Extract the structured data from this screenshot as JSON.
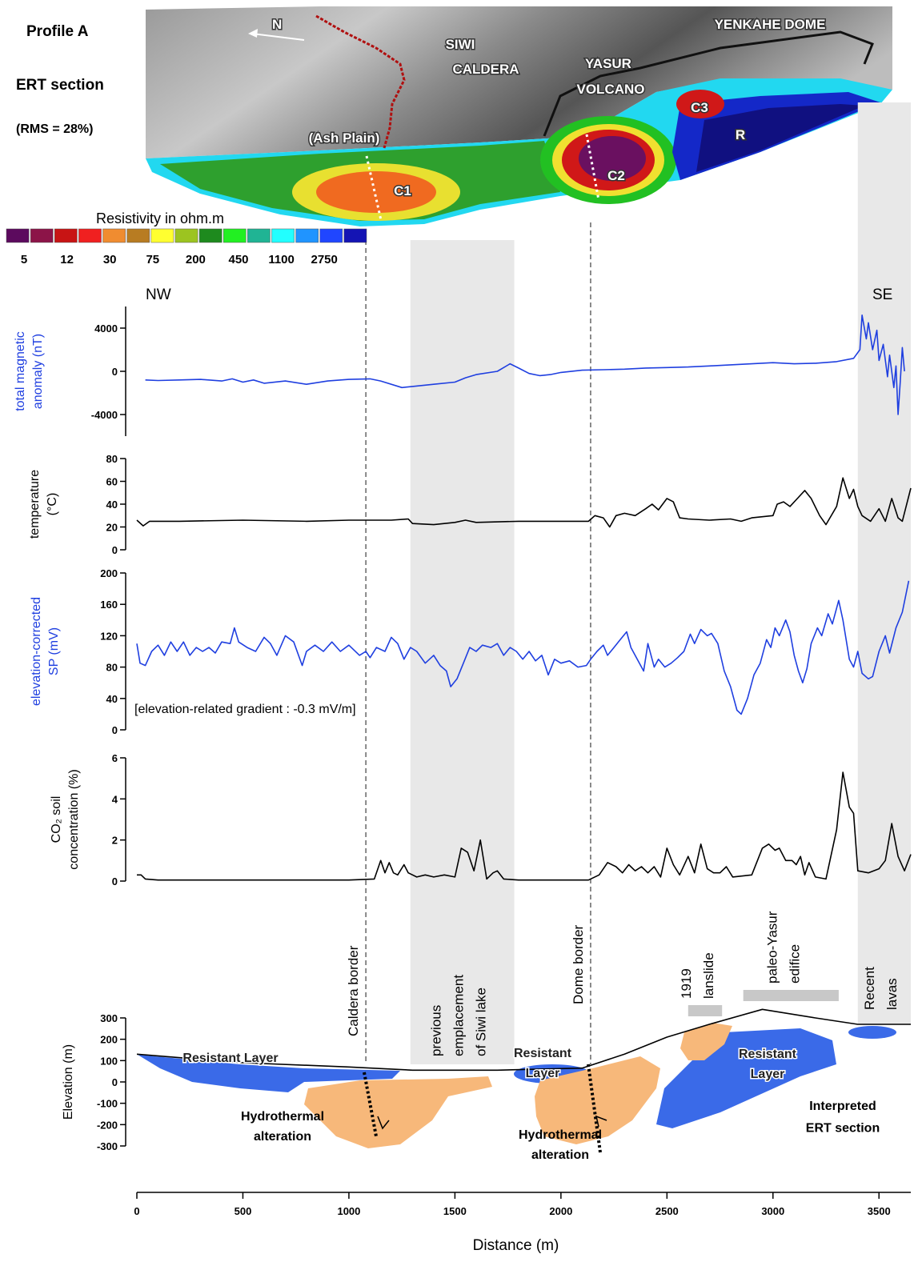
{
  "ert_image": {
    "profile": "Profile A",
    "section": "ERT section",
    "rms": "(RMS = 28%)",
    "north": "N",
    "siwi_caldera": [
      "SIWI",
      "CALDERA"
    ],
    "yasur_volcano": [
      "YASUR",
      "VOLCANO"
    ],
    "yenkahe_dome": "YENKAHE DOME",
    "ash_plain": "(Ash Plain)",
    "anomalies": [
      "C1",
      "C2",
      "C3",
      "R"
    ],
    "colorbar": {
      "title": "Resistivity in ohm.m",
      "colors": [
        "#5c0a5e",
        "#8c1448",
        "#c81414",
        "#f02020",
        "#f08c30",
        "#b87c22",
        "#ffff30",
        "#9cc420",
        "#1e8a1e",
        "#22f022",
        "#20b494",
        "#22ffff",
        "#2094ff",
        "#2046ff",
        "#1414b4"
      ],
      "labels": [
        "5",
        "12",
        "30",
        "75",
        "200",
        "450",
        "1100",
        "2750"
      ]
    }
  },
  "direction_labels": [
    "NW",
    "SE"
  ],
  "x_axis": {
    "label": "Distance (m)",
    "xlim": [
      0,
      3650
    ],
    "xticks": [
      0,
      500,
      1000,
      1500,
      2000,
      2500,
      3000,
      3500
    ]
  },
  "zones": {
    "bands": [
      {
        "from": 1290,
        "to": 1780,
        "label": [
          "previous",
          "emplacement",
          "of Siwi lake"
        ]
      },
      {
        "from": 3400,
        "to": 3650,
        "label": [
          "Recent",
          "lavas"
        ]
      }
    ],
    "bars": [
      {
        "from": 2600,
        "to": 2760,
        "label": [
          "1919",
          "lanslide"
        ]
      },
      {
        "from": 2860,
        "to": 3310,
        "label": [
          "paleo-Yasur",
          "edifice"
        ]
      }
    ],
    "borders": [
      {
        "x": 1080,
        "label": "Caldera border"
      },
      {
        "x": 2140,
        "label": "Dome border"
      }
    ]
  },
  "chart_data": [
    {
      "type": "line",
      "ylabel": [
        "total magnetic",
        "anomaly (nT)"
      ],
      "color": "#1f3fe0",
      "ylim": [
        -6000,
        6000
      ],
      "yticks": [
        -4000,
        0,
        4000
      ],
      "x": [
        40,
        100,
        200,
        300,
        400,
        450,
        500,
        550,
        600,
        700,
        800,
        900,
        1000,
        1100,
        1150,
        1250,
        1300,
        1400,
        1500,
        1550,
        1600,
        1700,
        1760,
        1800,
        1850,
        1900,
        1950,
        2000,
        2100,
        2200,
        2300,
        2400,
        2500,
        2600,
        2700,
        2800,
        2900,
        3000,
        3100,
        3200,
        3300,
        3380,
        3410,
        3420,
        3440,
        3450,
        3470,
        3490,
        3500,
        3520,
        3540,
        3550,
        3570,
        3580,
        3590,
        3600,
        3610,
        3620
      ],
      "values": [
        -800,
        -850,
        -800,
        -750,
        -900,
        -700,
        -1000,
        -800,
        -1100,
        -900,
        -1200,
        -900,
        -750,
        -700,
        -900,
        -1500,
        -1400,
        -1200,
        -1000,
        -600,
        -300,
        0,
        700,
        300,
        -200,
        -400,
        -300,
        -100,
        100,
        150,
        200,
        300,
        350,
        400,
        500,
        600,
        700,
        800,
        700,
        750,
        900,
        1200,
        2000,
        5200,
        3000,
        4500,
        2000,
        3800,
        1000,
        2500,
        -500,
        1500,
        -1500,
        500,
        -4000,
        -1000,
        2200,
        0
      ]
    },
    {
      "type": "line",
      "ylabel": [
        "temperature",
        "(°C)"
      ],
      "color": "#000000",
      "ylim": [
        0,
        80
      ],
      "yticks": [
        0,
        20,
        40,
        60,
        80
      ],
      "x": [
        0,
        30,
        60,
        200,
        500,
        800,
        1000,
        1200,
        1280,
        1300,
        1400,
        1500,
        1550,
        1600,
        1800,
        2000,
        2130,
        2160,
        2200,
        2230,
        2260,
        2300,
        2350,
        2400,
        2430,
        2460,
        2500,
        2530,
        2560,
        2600,
        2700,
        2800,
        2850,
        2900,
        3000,
        3020,
        3050,
        3080,
        3120,
        3150,
        3180,
        3220,
        3250,
        3300,
        3330,
        3360,
        3380,
        3400,
        3420,
        3460,
        3500,
        3530,
        3560,
        3590,
        3610,
        3650
      ],
      "values": [
        26,
        21,
        25,
        25,
        26,
        25,
        26,
        26,
        27,
        23,
        22,
        24,
        26,
        24,
        25,
        25,
        25,
        30,
        28,
        20,
        30,
        32,
        30,
        36,
        40,
        35,
        45,
        42,
        28,
        27,
        26,
        27,
        25,
        28,
        30,
        40,
        42,
        38,
        46,
        52,
        45,
        30,
        22,
        38,
        63,
        45,
        53,
        38,
        30,
        25,
        36,
        25,
        45,
        28,
        25,
        54
      ]
    },
    {
      "type": "line",
      "ylabel": [
        "elevation-corrected",
        "SP (mV)"
      ],
      "color": "#1f3fe0",
      "ylim": [
        0,
        200
      ],
      "yticks": [
        0,
        40,
        80,
        120,
        160,
        200
      ],
      "annotation": "[elevation-related gradient : -0.3 mV/m]",
      "x": [
        0,
        15,
        40,
        70,
        100,
        130,
        160,
        190,
        220,
        250,
        280,
        310,
        340,
        370,
        400,
        440,
        460,
        480,
        520,
        560,
        600,
        630,
        660,
        700,
        740,
        780,
        800,
        840,
        880,
        920,
        960,
        1000,
        1050,
        1080,
        1100,
        1130,
        1170,
        1200,
        1230,
        1260,
        1290,
        1320,
        1360,
        1400,
        1430,
        1460,
        1480,
        1510,
        1540,
        1570,
        1600,
        1630,
        1670,
        1700,
        1730,
        1760,
        1790,
        1820,
        1850,
        1880,
        1910,
        1940,
        1970,
        2000,
        2040,
        2080,
        2120,
        2140,
        2170,
        2200,
        2220,
        2250,
        2280,
        2310,
        2330,
        2360,
        2390,
        2410,
        2440,
        2460,
        2490,
        2520,
        2550,
        2580,
        2610,
        2630,
        2660,
        2690,
        2710,
        2740,
        2770,
        2800,
        2830,
        2850,
        2880,
        2910,
        2940,
        2970,
        2990,
        3010,
        3030,
        3060,
        3080,
        3100,
        3120,
        3140,
        3160,
        3180,
        3210,
        3230,
        3260,
        3280,
        3310,
        3330,
        3360,
        3380,
        3400,
        3420,
        3450,
        3470,
        3500,
        3530,
        3550,
        3580,
        3610,
        3640
      ],
      "values": [
        110,
        85,
        82,
        100,
        108,
        95,
        112,
        100,
        112,
        95,
        105,
        100,
        105,
        98,
        112,
        110,
        130,
        112,
        105,
        100,
        118,
        110,
        95,
        120,
        112,
        82,
        100,
        108,
        100,
        112,
        100,
        108,
        95,
        100,
        92,
        105,
        100,
        118,
        110,
        90,
        105,
        100,
        85,
        95,
        82,
        75,
        55,
        65,
        85,
        105,
        100,
        108,
        105,
        110,
        95,
        105,
        100,
        90,
        100,
        88,
        95,
        70,
        90,
        85,
        88,
        80,
        82,
        90,
        100,
        108,
        95,
        105,
        115,
        125,
        105,
        90,
        75,
        110,
        80,
        90,
        80,
        85,
        92,
        100,
        122,
        110,
        128,
        120,
        123,
        110,
        75,
        55,
        25,
        20,
        40,
        70,
        85,
        115,
        105,
        130,
        120,
        140,
        125,
        95,
        75,
        60,
        78,
        110,
        130,
        120,
        148,
        135,
        165,
        140,
        90,
        80,
        100,
        72,
        65,
        68,
        100,
        120,
        98,
        130,
        150,
        190
      ]
    },
    {
      "type": "line",
      "ylabel": [
        "CO₂ soil",
        "concentration (%)"
      ],
      "color": "#000000",
      "ylim": [
        0,
        6
      ],
      "yticks": [
        0,
        2,
        4,
        6
      ],
      "x": [
        0,
        20,
        40,
        100,
        500,
        1000,
        1120,
        1150,
        1170,
        1190,
        1210,
        1230,
        1260,
        1280,
        1320,
        1360,
        1400,
        1450,
        1500,
        1530,
        1560,
        1590,
        1620,
        1650,
        1680,
        1700,
        1730,
        1800,
        2000,
        2130,
        2180,
        2220,
        2260,
        2290,
        2320,
        2350,
        2380,
        2410,
        2440,
        2470,
        2500,
        2530,
        2560,
        2600,
        2630,
        2660,
        2690,
        2720,
        2750,
        2780,
        2810,
        2900,
        2950,
        2980,
        3010,
        3030,
        3060,
        3090,
        3110,
        3130,
        3150,
        3170,
        3200,
        3250,
        3300,
        3330,
        3360,
        3380,
        3400,
        3450,
        3500,
        3530,
        3560,
        3590,
        3620,
        3650
      ],
      "values": [
        0.3,
        0.3,
        0.1,
        0.05,
        0.05,
        0.05,
        0.1,
        1.0,
        0.4,
        0.9,
        0.4,
        0.3,
        0.8,
        0.4,
        0.2,
        0.3,
        0.2,
        0.3,
        0.2,
        1.6,
        1.4,
        0.5,
        2.0,
        0.1,
        0.4,
        0.5,
        0.1,
        0.05,
        0.05,
        0.05,
        0.3,
        0.9,
        0.7,
        0.4,
        0.8,
        0.5,
        0.7,
        0.4,
        0.7,
        0.2,
        1.6,
        0.8,
        0.3,
        1.2,
        0.4,
        1.8,
        0.6,
        0.4,
        0.4,
        0.7,
        0.2,
        0.3,
        1.6,
        1.8,
        1.5,
        1.6,
        1.0,
        1.0,
        0.8,
        1.2,
        0.3,
        0.9,
        0.2,
        0.1,
        2.5,
        5.3,
        3.6,
        3.3,
        0.5,
        0.4,
        0.6,
        1.0,
        2.8,
        1.2,
        0.5,
        1.3
      ]
    },
    {
      "type": "line",
      "ylabel": [
        "Elevation (m)"
      ],
      "color": "#000000",
      "ylim": [
        -300,
        300
      ],
      "yticks": [
        -300,
        -200,
        -100,
        0,
        100,
        200,
        300
      ],
      "x": [
        0,
        250,
        500,
        1000,
        1300,
        1700,
        2100,
        2300,
        2500,
        2700,
        2950,
        3200,
        3400,
        3650
      ],
      "values": [
        130,
        110,
        90,
        70,
        55,
        55,
        65,
        130,
        210,
        270,
        340,
        300,
        270,
        270
      ],
      "annotations": [
        {
          "lines": [
            "Resistant Layer"
          ]
        },
        {
          "lines": [
            "Resistant",
            "Layer"
          ]
        },
        {
          "lines": [
            "Resistant",
            "Layer"
          ]
        },
        {
          "lines": [
            "Hydrothermal",
            "alteration"
          ]
        },
        {
          "lines": [
            "Hydrothermal",
            "alteration"
          ]
        },
        {
          "lines": [
            "Interpreted",
            "ERT section"
          ]
        }
      ]
    }
  ]
}
